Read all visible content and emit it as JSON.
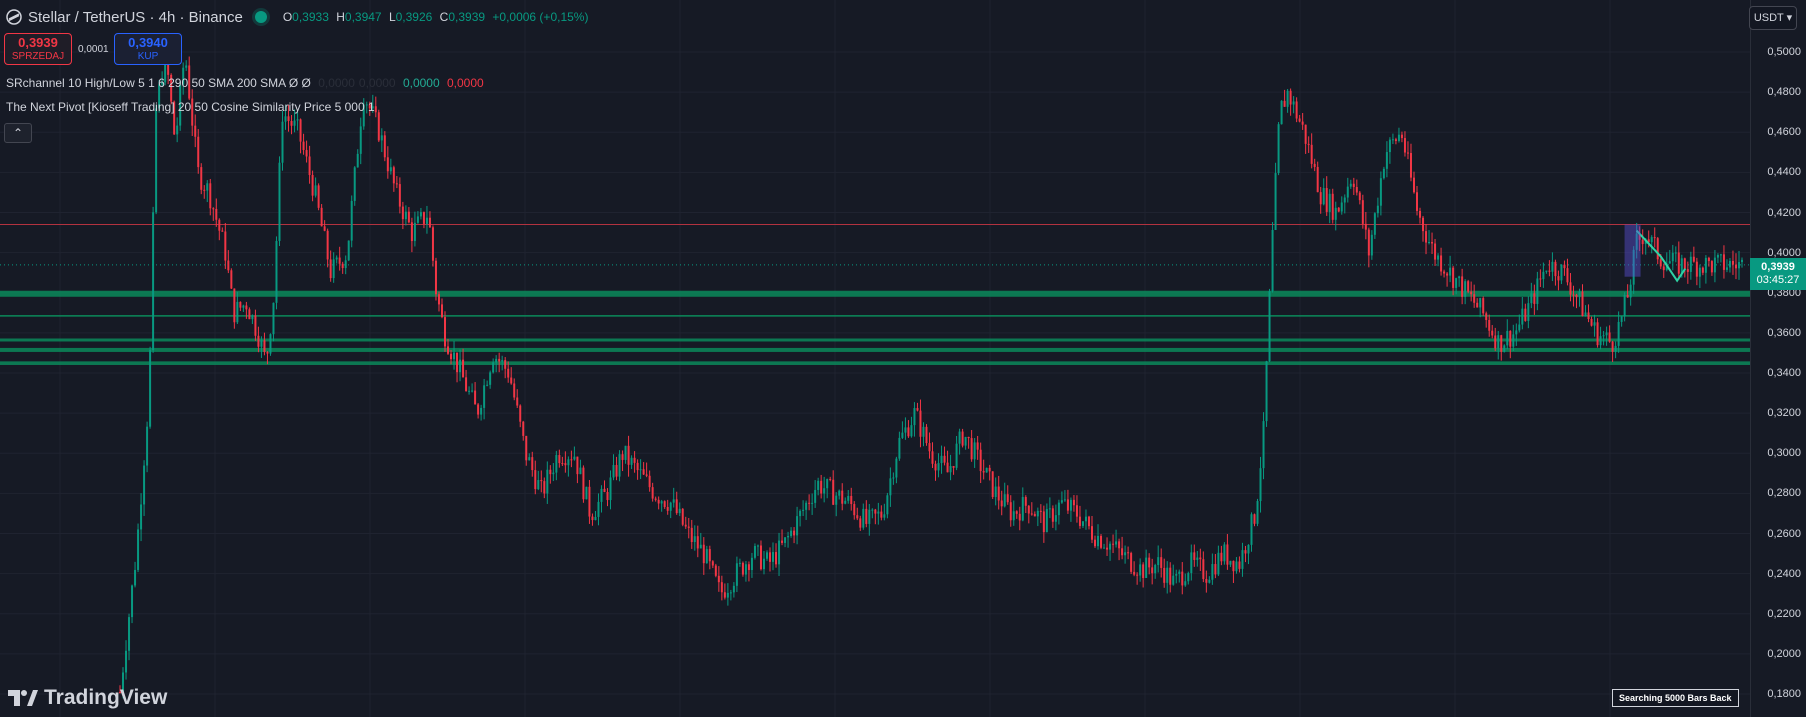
{
  "header": {
    "symbol": "Stellar / TetherUS · 4h · Binance",
    "ohlc": [
      {
        "key": "O",
        "value": "0,3933"
      },
      {
        "key": "H",
        "value": "0,3947"
      },
      {
        "key": "L",
        "value": "0,3926"
      },
      {
        "key": "C",
        "value": "0,3939"
      }
    ],
    "change": "+0,0006 (+0,15%)"
  },
  "trade": {
    "sell_price": "0,3939",
    "sell_label": "SPRZEDAJ",
    "spread": "0,0001",
    "buy_price": "0,3940",
    "buy_label": "KUP"
  },
  "indicators": [
    {
      "text": "SRchannel 10 High/Low 5 1 6 290 50 SMA 200 SMA  Ø  Ø",
      "values": [
        {
          "v": "0,0000",
          "color": "dark"
        },
        {
          "v": "0,0000",
          "color": "dark"
        },
        {
          "v": "0,0000",
          "color": "green"
        },
        {
          "v": "0,0000",
          "color": "red"
        }
      ]
    },
    {
      "text": "The Next Pivot [Kioseff Trading] 20 50 Cosine Similarity Price 5 000 1",
      "values": []
    }
  ],
  "collapse_icon": "chevron-up-icon",
  "axis": {
    "currency": "USDT",
    "ticks": [
      "0,5000",
      "0,4800",
      "0,4600",
      "0,4400",
      "0,4200",
      "0,4000",
      "0,3800",
      "0,3600",
      "0,3400",
      "0,3200",
      "0,3000",
      "0,2800",
      "0,2600",
      "0,2400",
      "0,2200",
      "0,2000",
      "0,1800"
    ],
    "tick_values": [
      0.5,
      0.48,
      0.46,
      0.44,
      0.42,
      0.4,
      0.38,
      0.36,
      0.34,
      0.32,
      0.3,
      0.28,
      0.26,
      0.24,
      0.22,
      0.2,
      0.18
    ]
  },
  "price_label": {
    "price": "0,3939",
    "countdown": "03:45:27"
  },
  "status": {
    "searching": "Searching 5000 Bars Back"
  },
  "brand": {
    "name": "TradingView"
  },
  "colors": {
    "up": "#089981",
    "down": "#f23645",
    "background": "#161a25",
    "grid": "#1f2330",
    "sr_zone": "#0b8a5a",
    "resistance": "#b2323f"
  },
  "chart_data": {
    "type": "candlestick",
    "title": "Stellar / TetherUS · 4h · Binance",
    "ylim": [
      0.18,
      0.51
    ],
    "current_price": 0.3939,
    "support_resistance": [
      {
        "kind": "resistance",
        "y": 0.414
      },
      {
        "kind": "support-zone",
        "y_top": 0.381,
        "y_bottom": 0.378
      },
      {
        "kind": "support",
        "y": 0.3685
      },
      {
        "kind": "support-zone",
        "y_top": 0.3572,
        "y_bottom": 0.356
      },
      {
        "kind": "support-zone",
        "y_top": 0.3525,
        "y_bottom": 0.3505
      },
      {
        "kind": "support-zone",
        "y_top": 0.3458,
        "y_bottom": 0.344
      }
    ],
    "close_path": [
      [
        0.0,
        0.181
      ],
      [
        0.01,
        0.25
      ],
      [
        0.018,
        0.33
      ],
      [
        0.022,
        0.47
      ],
      [
        0.028,
        0.5
      ],
      [
        0.034,
        0.455
      ],
      [
        0.04,
        0.5
      ],
      [
        0.048,
        0.44
      ],
      [
        0.055,
        0.43
      ],
      [
        0.065,
        0.4
      ],
      [
        0.07,
        0.37
      ],
      [
        0.078,
        0.375
      ],
      [
        0.085,
        0.36
      ],
      [
        0.09,
        0.345
      ],
      [
        0.095,
        0.38
      ],
      [
        0.1,
        0.47
      ],
      [
        0.11,
        0.46
      ],
      [
        0.12,
        0.43
      ],
      [
        0.13,
        0.39
      ],
      [
        0.14,
        0.4
      ],
      [
        0.15,
        0.48
      ],
      [
        0.16,
        0.46
      ],
      [
        0.17,
        0.43
      ],
      [
        0.18,
        0.41
      ],
      [
        0.19,
        0.42
      ],
      [
        0.195,
        0.38
      ],
      [
        0.2,
        0.36
      ],
      [
        0.21,
        0.34
      ],
      [
        0.22,
        0.32
      ],
      [
        0.23,
        0.35
      ],
      [
        0.24,
        0.34
      ],
      [
        0.25,
        0.3
      ],
      [
        0.26,
        0.28
      ],
      [
        0.27,
        0.3
      ],
      [
        0.28,
        0.3
      ],
      [
        0.29,
        0.27
      ],
      [
        0.3,
        0.28
      ],
      [
        0.31,
        0.3
      ],
      [
        0.32,
        0.29
      ],
      [
        0.33,
        0.28
      ],
      [
        0.34,
        0.275
      ],
      [
        0.35,
        0.26
      ],
      [
        0.36,
        0.25
      ],
      [
        0.37,
        0.23
      ],
      [
        0.38,
        0.24
      ],
      [
        0.39,
        0.25
      ],
      [
        0.4,
        0.245
      ],
      [
        0.41,
        0.255
      ],
      [
        0.42,
        0.27
      ],
      [
        0.43,
        0.285
      ],
      [
        0.44,
        0.28
      ],
      [
        0.45,
        0.275
      ],
      [
        0.46,
        0.265
      ],
      [
        0.47,
        0.27
      ],
      [
        0.48,
        0.305
      ],
      [
        0.49,
        0.32
      ],
      [
        0.5,
        0.3
      ],
      [
        0.51,
        0.29
      ],
      [
        0.52,
        0.31
      ],
      [
        0.53,
        0.295
      ],
      [
        0.54,
        0.28
      ],
      [
        0.55,
        0.27
      ],
      [
        0.56,
        0.275
      ],
      [
        0.57,
        0.265
      ],
      [
        0.58,
        0.275
      ],
      [
        0.59,
        0.27
      ],
      [
        0.6,
        0.26
      ],
      [
        0.61,
        0.255
      ],
      [
        0.62,
        0.248
      ],
      [
        0.63,
        0.242
      ],
      [
        0.64,
        0.245
      ],
      [
        0.65,
        0.235
      ],
      [
        0.66,
        0.245
      ],
      [
        0.67,
        0.24
      ],
      [
        0.68,
        0.25
      ],
      [
        0.69,
        0.245
      ],
      [
        0.7,
        0.27
      ],
      [
        0.705,
        0.31
      ],
      [
        0.71,
        0.4
      ],
      [
        0.715,
        0.47
      ],
      [
        0.72,
        0.48
      ],
      [
        0.73,
        0.46
      ],
      [
        0.74,
        0.43
      ],
      [
        0.75,
        0.42
      ],
      [
        0.76,
        0.44
      ],
      [
        0.77,
        0.4
      ],
      [
        0.78,
        0.45
      ],
      [
        0.79,
        0.46
      ],
      [
        0.8,
        0.42
      ],
      [
        0.81,
        0.4
      ],
      [
        0.82,
        0.39
      ],
      [
        0.83,
        0.38
      ],
      [
        0.84,
        0.37
      ],
      [
        0.85,
        0.355
      ],
      [
        0.86,
        0.36
      ],
      [
        0.87,
        0.375
      ],
      [
        0.88,
        0.395
      ],
      [
        0.89,
        0.39
      ],
      [
        0.9,
        0.375
      ],
      [
        0.91,
        0.36
      ],
      [
        0.92,
        0.355
      ],
      [
        0.925,
        0.365
      ],
      [
        0.93,
        0.38
      ],
      [
        0.935,
        0.405
      ],
      [
        0.94,
        0.41
      ],
      [
        0.95,
        0.397
      ],
      [
        0.96,
        0.394
      ]
    ],
    "pivot_projection": [
      [
        0.935,
        0.411
      ],
      [
        0.95,
        0.398
      ],
      [
        0.96,
        0.386
      ],
      [
        0.965,
        0.392
      ]
    ]
  }
}
